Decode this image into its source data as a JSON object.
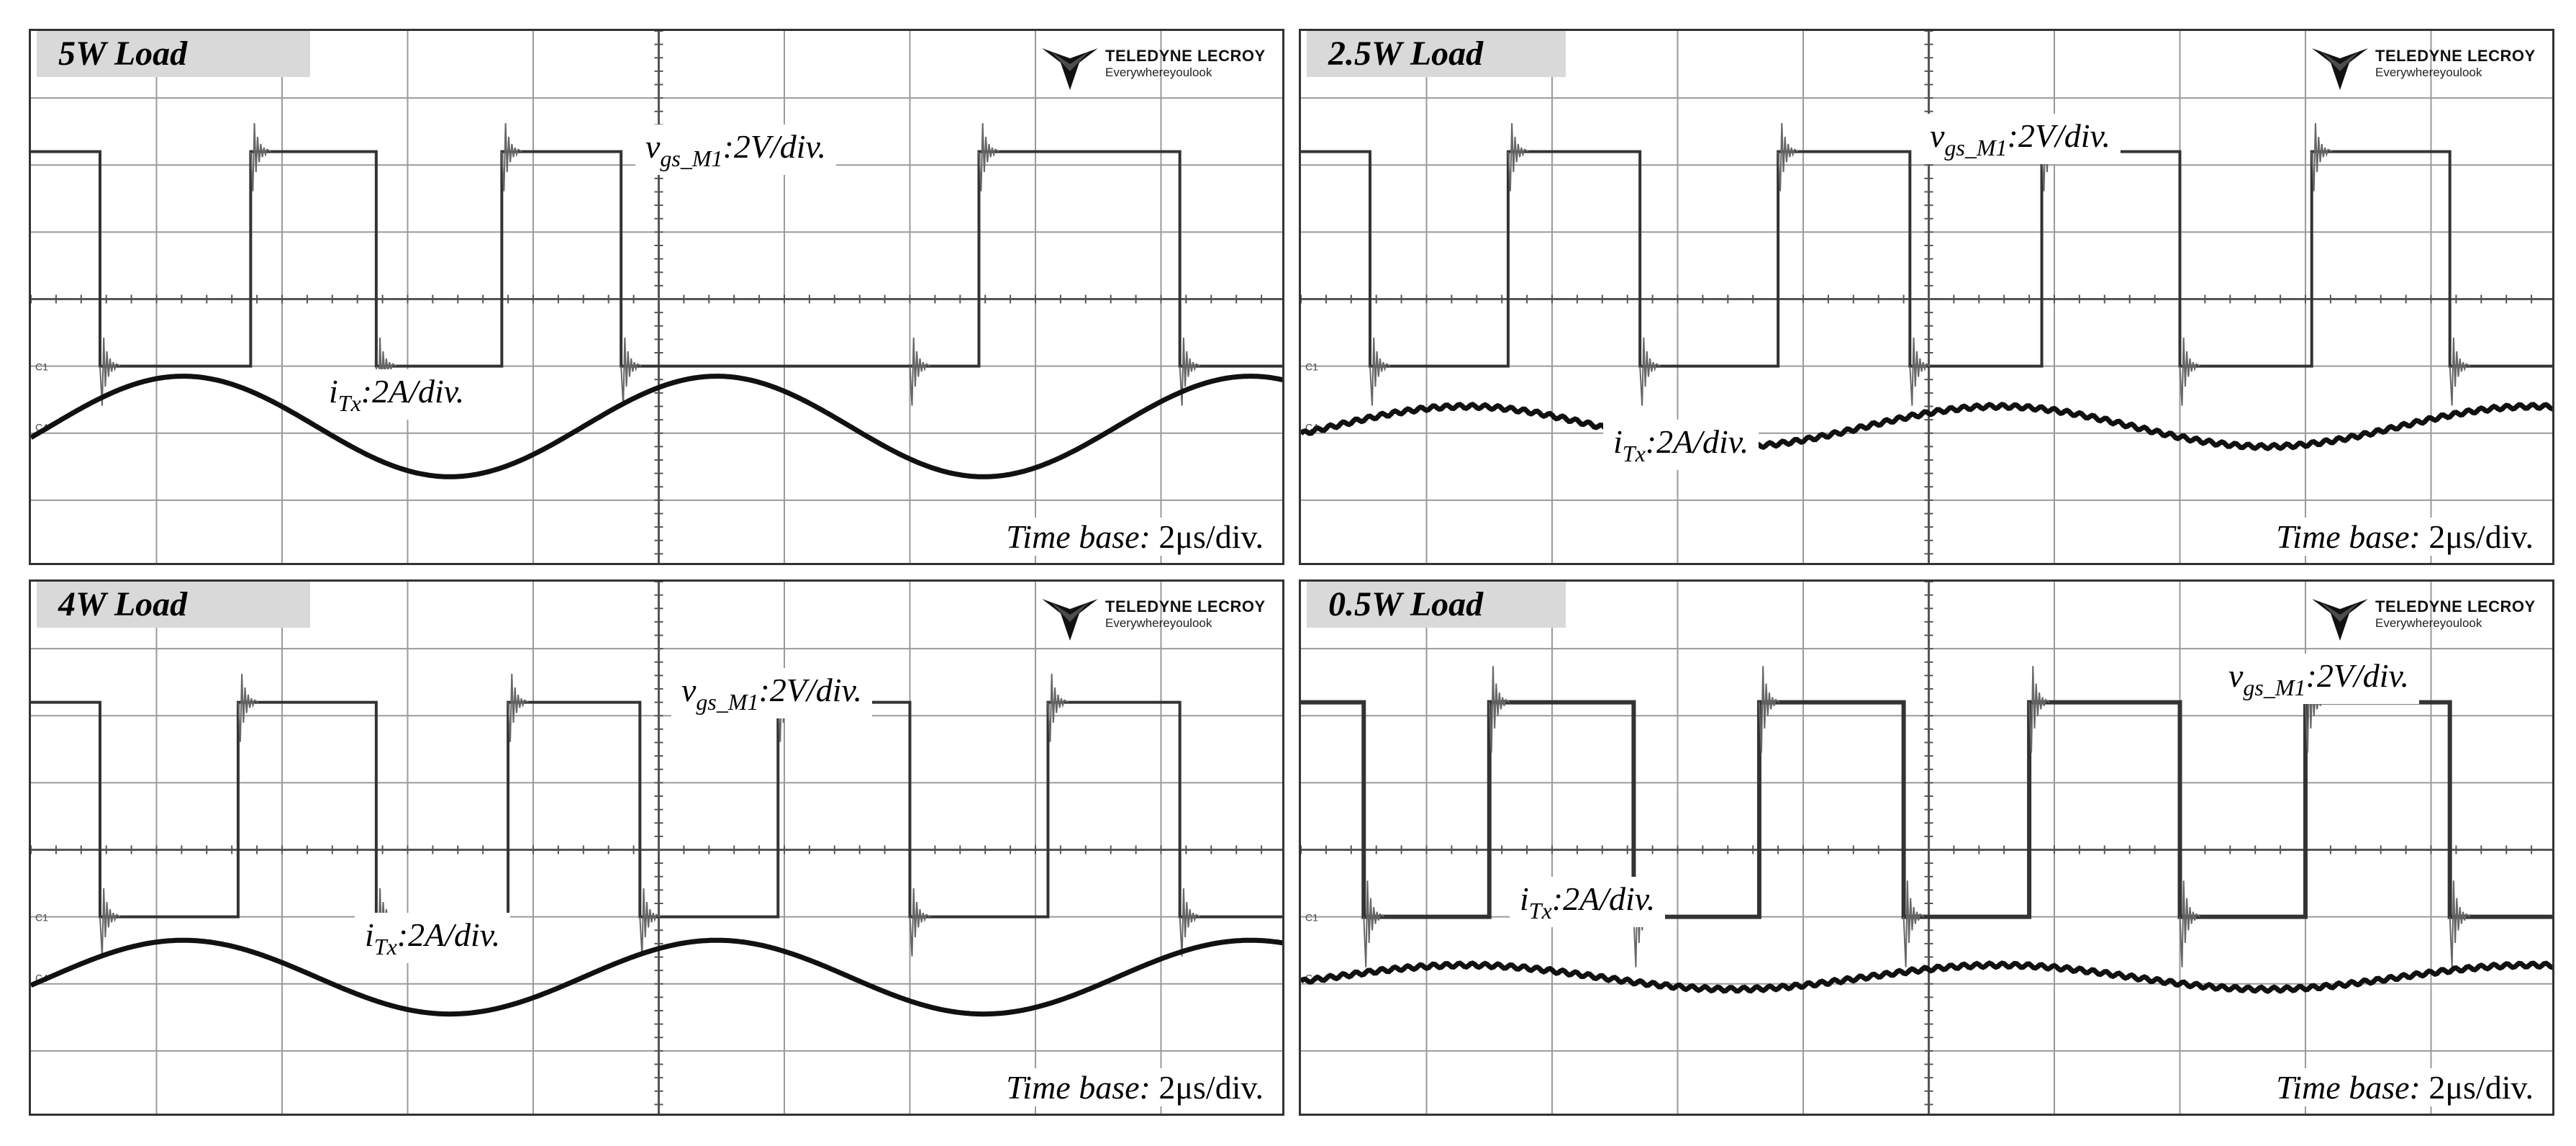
{
  "chart_data": [
    {
      "type": "line",
      "title": "5W Load",
      "brand": "TELEDYNE LECROY",
      "slogan": "Everywhereyoulook",
      "vgs_symbol": "v",
      "vgs_sub": "gs_M1",
      "vgs_scale": ":2V/div.",
      "itx_symbol": "i",
      "itx_sub": "Tx",
      "itx_scale": ":2A/div.",
      "timebase_label": "Time base:",
      "timebase_value": "2μs/div.",
      "x_unit": "μs",
      "x_range": [
        0,
        20
      ],
      "series": [
        {
          "name": "vgs_M1",
          "kind": "gate",
          "high_div": 2.2,
          "low_div": -1.0,
          "rise_us": [
            3.5,
            7.5,
            15.1
          ],
          "fall_us": [
            1.1,
            5.5,
            9.4,
            14.0,
            18.3
          ],
          "ringing": "moderate"
        },
        {
          "name": "iTx",
          "kind": "sine",
          "amplitude_div": 0.75,
          "period_us": 8.5,
          "phase_us": 0.3,
          "offset_div": -1.9
        }
      ]
    },
    {
      "type": "line",
      "title": "2.5W Load",
      "brand": "TELEDYNE LECROY",
      "slogan": "Everywhereyoulook",
      "vgs_symbol": "v",
      "vgs_sub": "gs_M1",
      "vgs_scale": ":2V/div.",
      "itx_symbol": "i",
      "itx_sub": "Tx",
      "itx_scale": ":2A/div.",
      "timebase_label": "Time base:",
      "timebase_value": "2μs/div.",
      "x_unit": "μs",
      "x_range": [
        0,
        20
      ],
      "series": [
        {
          "name": "vgs_M1",
          "kind": "gate",
          "high_div": 2.2,
          "low_div": -1.0,
          "rise_us": [
            3.3,
            7.6,
            11.8,
            16.1
          ],
          "fall_us": [
            1.1,
            5.4,
            9.7,
            14.0,
            18.3
          ],
          "ringing": "moderate"
        },
        {
          "name": "iTx",
          "kind": "sine",
          "amplitude_div": 0.3,
          "period_us": 8.5,
          "phase_us": 0.5,
          "offset_div": -1.9
        }
      ]
    },
    {
      "type": "line",
      "title": "4W Load",
      "brand": "TELEDYNE LECROY",
      "slogan": "Everywhereyoulook",
      "vgs_symbol": "v",
      "vgs_sub": "gs_M1",
      "vgs_scale": ":2V/div.",
      "itx_symbol": "i",
      "itx_sub": "Tx",
      "itx_scale": ":2A/div.",
      "timebase_label": "Time base:",
      "timebase_value": "2μs/div.",
      "x_unit": "μs",
      "x_range": [
        0,
        20
      ],
      "series": [
        {
          "name": "vgs_M1",
          "kind": "gate",
          "high_div": 2.2,
          "low_div": -1.0,
          "rise_us": [
            3.3,
            7.6,
            11.9,
            16.2
          ],
          "fall_us": [
            1.1,
            5.5,
            9.7,
            14.0,
            18.3
          ],
          "ringing": "moderate"
        },
        {
          "name": "iTx",
          "kind": "sine",
          "amplitude_div": 0.55,
          "period_us": 8.5,
          "phase_us": 0.3,
          "offset_div": -1.9
        }
      ]
    },
    {
      "type": "line",
      "title": "0.5W Load",
      "brand": "TELEDYNE LECROY",
      "slogan": "Everywhereyoulook",
      "vgs_symbol": "v",
      "vgs_sub": "gs_M1",
      "vgs_scale": ":2V/div.",
      "itx_symbol": "i",
      "itx_sub": "Tx",
      "itx_scale": ":2A/div.",
      "timebase_label": "Time base:",
      "timebase_value": "2μs/div.",
      "x_unit": "μs",
      "x_range": [
        0,
        20
      ],
      "series": [
        {
          "name": "vgs_M1",
          "kind": "gate",
          "high_div": 2.2,
          "low_div": -1.0,
          "rise_us": [
            3.0,
            7.3,
            11.6,
            16.0
          ],
          "fall_us": [
            1.0,
            5.3,
            9.6,
            14.0,
            18.3
          ],
          "ringing": "heavy"
        },
        {
          "name": "iTx",
          "kind": "sine",
          "amplitude_div": 0.18,
          "period_us": 8.5,
          "phase_us": 0.5,
          "offset_div": -1.9
        }
      ]
    }
  ]
}
